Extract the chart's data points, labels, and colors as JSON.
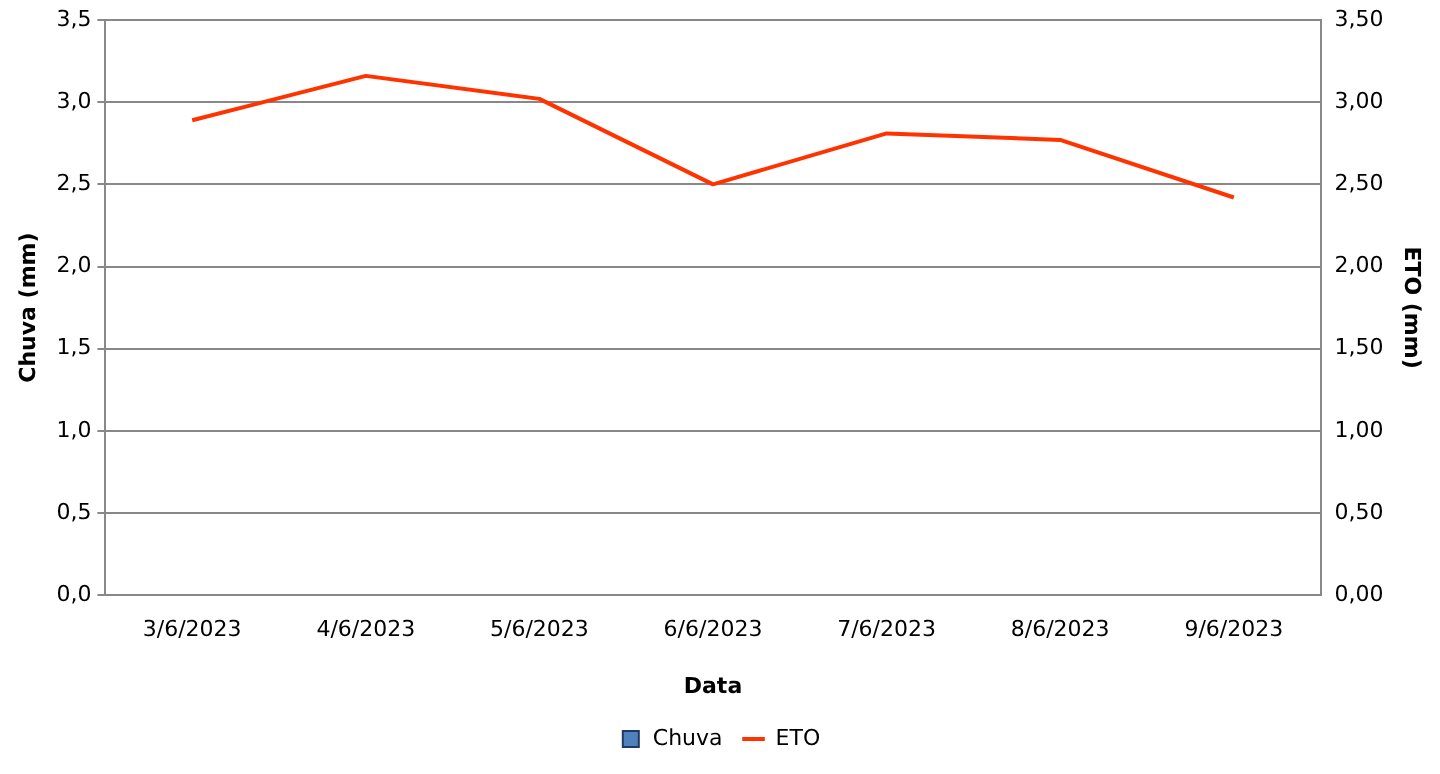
{
  "chart_data": {
    "type": "bar",
    "xlabel": "Data",
    "ylabel": "Chuva (mm)",
    "y2label": "ETO (mm)",
    "categories": [
      "3/6/2023",
      "4/6/2023",
      "5/6/2023",
      "6/6/2023",
      "7/6/2023",
      "8/6/2023",
      "9/6/2023"
    ],
    "series": [
      {
        "name": "Chuva",
        "color": "#4f81bd",
        "values": [
          0,
          0,
          0,
          0,
          0,
          0,
          0
        ]
      },
      {
        "name": "ETO",
        "type": "line",
        "axis": "y2",
        "color": "#ff3300",
        "values": [
          2.89,
          3.16,
          3.02,
          2.5,
          2.81,
          2.77,
          2.42
        ]
      }
    ],
    "ylim": [
      0,
      3.5
    ],
    "yticks": [
      {
        "value": 0,
        "label": "0,0"
      },
      {
        "value": 0.5,
        "label": "0,5"
      },
      {
        "value": 1,
        "label": "1,0"
      },
      {
        "value": 1.5,
        "label": "1,5"
      },
      {
        "value": 2,
        "label": "2,0"
      },
      {
        "value": 2.5,
        "label": "2,5"
      },
      {
        "value": 3,
        "label": "3,0"
      },
      {
        "value": 3.5,
        "label": "3,5"
      }
    ],
    "y2lim": [
      0,
      3.5
    ],
    "y2ticks": [
      {
        "value": 0,
        "label": "0,00"
      },
      {
        "value": 0.5,
        "label": "0,50"
      },
      {
        "value": 1,
        "label": "1,00"
      },
      {
        "value": 1.5,
        "label": "1,50"
      },
      {
        "value": 2,
        "label": "2,00"
      },
      {
        "value": 2.5,
        "label": "2,50"
      },
      {
        "value": 3,
        "label": "3,00"
      },
      {
        "value": 3.5,
        "label": "3,50"
      }
    ],
    "grid": "y",
    "legend": "bottom",
    "marker": "none",
    "line_style": "solid"
  }
}
